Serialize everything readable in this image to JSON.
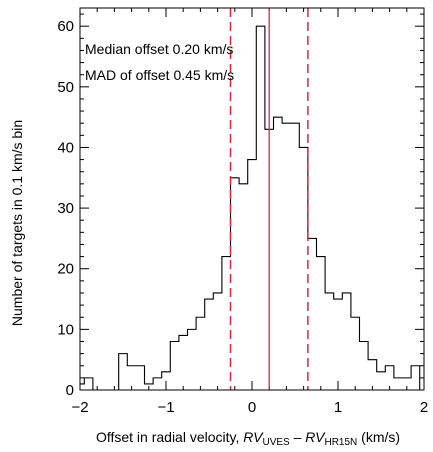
{
  "chart_data": {
    "type": "histogram",
    "xlabel": {
      "prefix": "Offset in radial velocity, ",
      "rv": "RV",
      "sub1": "UVES",
      "minus": " – ",
      "sub2": "HR15N",
      "suffix": " (km/s)"
    },
    "ylabel": "Number of targets in 0.1 km/s bin",
    "xlim": [
      -2,
      2
    ],
    "ylim": [
      0,
      63
    ],
    "xticks": [
      {
        "value": -2,
        "label": "−2"
      },
      {
        "value": -1,
        "label": "−1"
      },
      {
        "value": 0,
        "label": "0"
      },
      {
        "value": 1,
        "label": "1"
      },
      {
        "value": 2,
        "label": "2"
      }
    ],
    "yticks": [
      0,
      10,
      20,
      30,
      40,
      50,
      60
    ],
    "bin_width": 0.1,
    "bin_start": -2.05,
    "counts": [
      1,
      2,
      0,
      0,
      0,
      6,
      4,
      4,
      1,
      2,
      3,
      8,
      9,
      10,
      12,
      15,
      16,
      22,
      35,
      34,
      38,
      60,
      43,
      45,
      44,
      44,
      40,
      25,
      22,
      16,
      15,
      16,
      12,
      8,
      5,
      3,
      4,
      2,
      2,
      4,
      0
    ],
    "annotations": [
      "Median offset 0.20 km/s",
      "MAD of offset 0.45 km/s"
    ],
    "median": 0.2,
    "mad_lines": [
      -0.25,
      0.65
    ],
    "line_color": "#e8223a",
    "grid": false
  }
}
